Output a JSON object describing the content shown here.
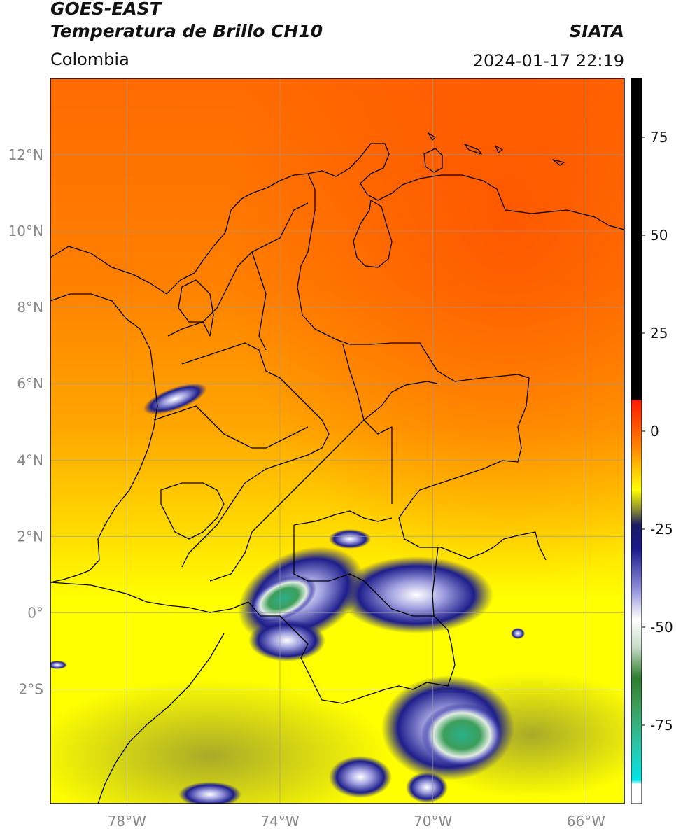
{
  "header": {
    "title_line1": "GOES-EAST",
    "title_line2": "Temperatura de Brillo CH10",
    "region": "Colombia",
    "organization": "SIATA",
    "timestamp": "2024-01-17 22:19"
  },
  "map": {
    "lon_range": [
      -80.0,
      -65.0
    ],
    "lat_range": [
      -5.0,
      14.0
    ],
    "gridlines": true,
    "lat_ticks": [
      {
        "value": 12,
        "label": "12°N"
      },
      {
        "value": 10,
        "label": "10°N"
      },
      {
        "value": 8,
        "label": "8°N"
      },
      {
        "value": 6,
        "label": "6°N"
      },
      {
        "value": 4,
        "label": "4°N"
      },
      {
        "value": 2,
        "label": "2°N"
      },
      {
        "value": 0,
        "label": "0°"
      },
      {
        "value": -2,
        "label": "2°S"
      }
    ],
    "lon_ticks": [
      {
        "value": -78,
        "label": "78°W"
      },
      {
        "value": -74,
        "label": "74°W"
      },
      {
        "value": -70,
        "label": "70°W"
      },
      {
        "value": -66,
        "label": "66°W"
      }
    ]
  },
  "colorbar": {
    "range": [
      -95,
      90
    ],
    "ticks": [
      {
        "value": 75,
        "label": "75"
      },
      {
        "value": 50,
        "label": "50"
      },
      {
        "value": 25,
        "label": "25"
      },
      {
        "value": 0,
        "label": "0"
      },
      {
        "value": -25,
        "label": "-25"
      },
      {
        "value": -50,
        "label": "-50"
      },
      {
        "value": -75,
        "label": "-75"
      }
    ],
    "stops": [
      {
        "value": 90,
        "color": "#000000"
      },
      {
        "value": 8,
        "color": "#000000"
      },
      {
        "value": 7.9,
        "color": "#ff1a00"
      },
      {
        "value": -3,
        "color": "#ff7a00"
      },
      {
        "value": -10,
        "color": "#ffc800"
      },
      {
        "value": -15,
        "color": "#ffff00"
      },
      {
        "value": -20,
        "color": "#8c8c33"
      },
      {
        "value": -24,
        "color": "#1a1a66"
      },
      {
        "value": -30,
        "color": "#1a1a8c"
      },
      {
        "value": -40,
        "color": "#8c8cd9"
      },
      {
        "value": -48,
        "color": "#ffffff"
      },
      {
        "value": -55,
        "color": "#c8dcc8"
      },
      {
        "value": -63,
        "color": "#2e7d2e"
      },
      {
        "value": -70,
        "color": "#3c9e5a"
      },
      {
        "value": -80,
        "color": "#2bc4a8"
      },
      {
        "value": -89,
        "color": "#00e5e5"
      },
      {
        "value": -90.1,
        "color": "#ffffff"
      },
      {
        "value": -95,
        "color": "#ffffff"
      }
    ]
  },
  "colors": {
    "warm_north": "#ff6400",
    "mid": "#ffb400",
    "south": "#ffff00",
    "cloud_blue": "#1e1e8c",
    "cloud_green": "#3c9e5a",
    "border": "#000000",
    "grid": "#9a9a9a"
  }
}
